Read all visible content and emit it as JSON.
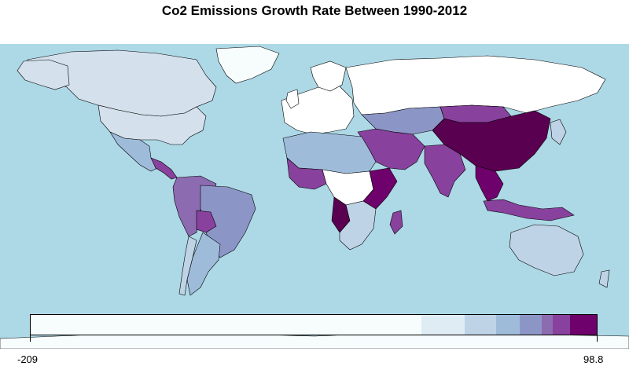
{
  "map": {
    "title": "Co2 Emissions Growth Rate Between 1990-2012",
    "ocean_color": "#add8e6",
    "border_color": "#000000",
    "legend": {
      "min_label": "-209",
      "max_label": "98.8",
      "min_value": -209,
      "max_value": 98.8,
      "bins": [
        {
          "color": "#f7fcfd"
        },
        {
          "color": "#e0ecf4"
        },
        {
          "color": "#bfd3e6"
        },
        {
          "color": "#9ebcda"
        },
        {
          "color": "#8c96c6"
        },
        {
          "color": "#8c6bb1"
        },
        {
          "color": "#88419d"
        },
        {
          "color": "#6e016b"
        }
      ]
    },
    "regions": [
      {
        "name": "Canada",
        "color": "#d4e0ec"
      },
      {
        "name": "United States",
        "color": "#d4e0ec"
      },
      {
        "name": "Greenland",
        "color": "#f7fcfd"
      },
      {
        "name": "Mexico",
        "color": "#9ebcda"
      },
      {
        "name": "Central America",
        "color": "#88419d"
      },
      {
        "name": "Brazil",
        "color": "#8c96c6"
      },
      {
        "name": "Argentina",
        "color": "#9ebcda"
      },
      {
        "name": "Chile",
        "color": "#bfd3e6"
      },
      {
        "name": "Bolivia",
        "color": "#88419d"
      },
      {
        "name": "Peru/Colombia",
        "color": "#8c6bb1"
      },
      {
        "name": "Russia",
        "color": "#ffffff"
      },
      {
        "name": "Europe",
        "color": "#ffffff"
      },
      {
        "name": "China",
        "color": "#5a0050"
      },
      {
        "name": "India",
        "color": "#88419d"
      },
      {
        "name": "Middle East",
        "color": "#88419d"
      },
      {
        "name": "North Africa",
        "color": "#9ebcda"
      },
      {
        "name": "West Africa",
        "color": "#88419d"
      },
      {
        "name": "Central Africa",
        "color": "#ffffff"
      },
      {
        "name": "East Africa",
        "color": "#6e016b"
      },
      {
        "name": "Southern Africa",
        "color": "#bfd3e6"
      },
      {
        "name": "Angola",
        "color": "#5a0050"
      },
      {
        "name": "Madagascar",
        "color": "#88419d"
      },
      {
        "name": "Australia",
        "color": "#bfd3e6"
      },
      {
        "name": "Indonesia",
        "color": "#88419d"
      },
      {
        "name": "Southeast Asia",
        "color": "#6e016b"
      },
      {
        "name": "Kazakhstan/Central Asia",
        "color": "#8c96c6"
      },
      {
        "name": "Japan/Korea",
        "color": "#bfd3e6"
      },
      {
        "name": "Mongolia",
        "color": "#88419d"
      }
    ]
  }
}
